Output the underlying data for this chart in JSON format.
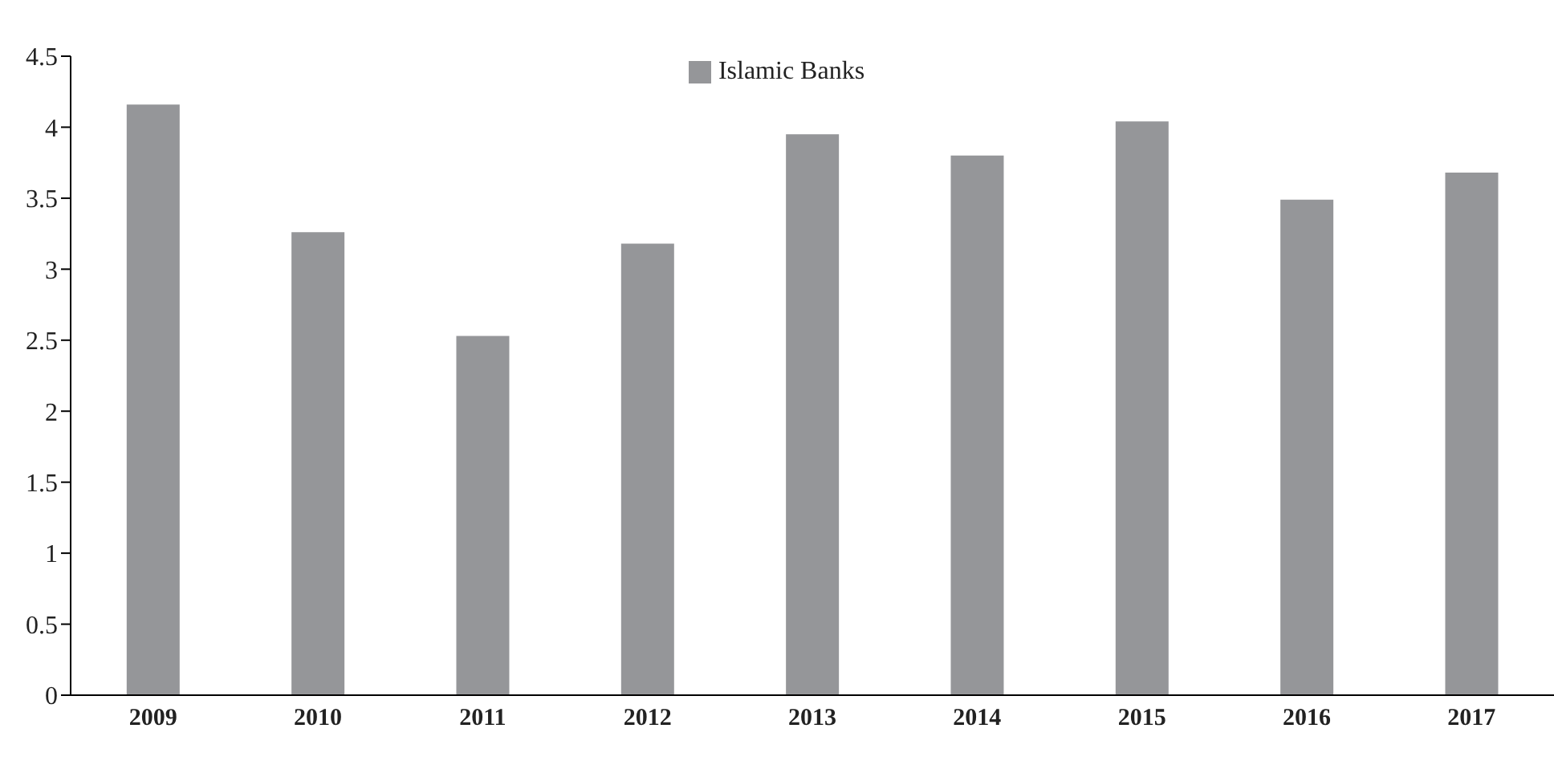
{
  "chart_data": {
    "type": "bar",
    "categories": [
      "2009",
      "2010",
      "2011",
      "2012",
      "2013",
      "2014",
      "2015",
      "2016",
      "2017"
    ],
    "series": [
      {
        "name": "Islamic Banks",
        "color": "#959699",
        "values": [
          4.16,
          3.26,
          2.53,
          3.18,
          3.95,
          3.8,
          4.04,
          3.49,
          3.68
        ]
      }
    ],
    "ylim": [
      0,
      4.5
    ],
    "yticks": [
      0,
      0.5,
      1,
      1.5,
      2,
      2.5,
      3,
      3.5,
      4,
      4.5
    ],
    "grid": false,
    "legend": "top"
  }
}
